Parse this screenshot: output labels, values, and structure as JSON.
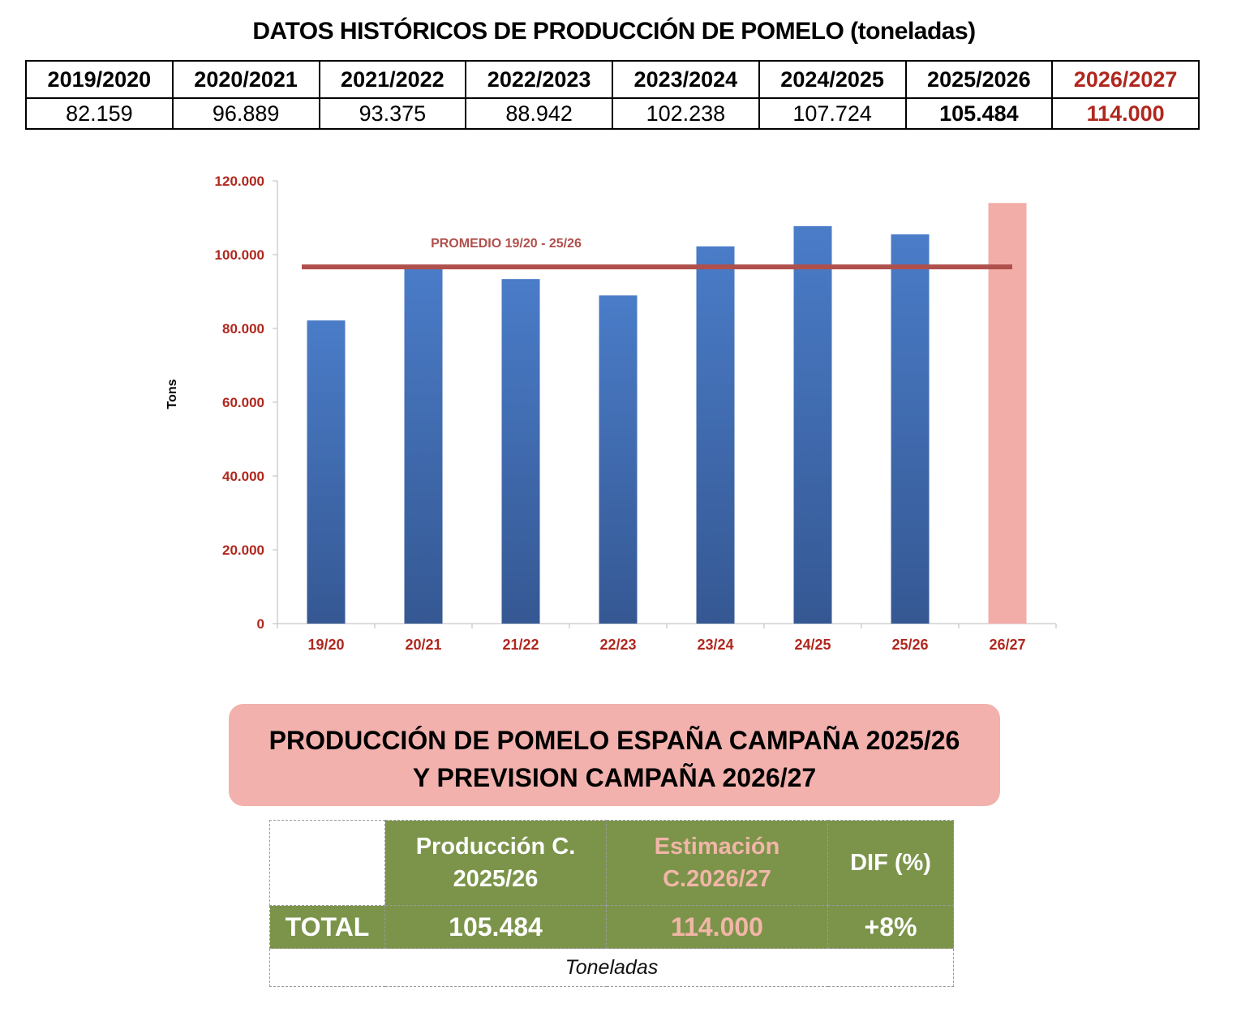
{
  "page": {
    "title": "DATOS HISTÓRICOS DE PRODUCCIÓN DE POMELO (toneladas)"
  },
  "historical_table": {
    "seasons": [
      "2019/2020",
      "2020/2021",
      "2021/2022",
      "2022/2023",
      "2023/2024",
      "2024/2025",
      "2025/2026",
      "2026/2027"
    ],
    "values": [
      "82.159",
      "96.889",
      "93.375",
      "88.942",
      "102.238",
      "107.724",
      "105.484",
      "114.000"
    ],
    "highlight_color": "#b0271e"
  },
  "chart_data": {
    "type": "bar",
    "categories": [
      "19/20",
      "20/21",
      "21/22",
      "22/23",
      "23/24",
      "24/25",
      "25/26",
      "26/27"
    ],
    "values": [
      82159,
      96889,
      93375,
      88942,
      102238,
      107724,
      105484,
      114000
    ],
    "ylabel": "Tons",
    "xlabel": "",
    "ylim": [
      0,
      120000
    ],
    "yticks": [
      0,
      20000,
      40000,
      60000,
      80000,
      100000,
      120000
    ],
    "ytick_labels": [
      "0",
      "20.000",
      "40.000",
      "60.000",
      "80.000",
      "100.000",
      "120.000"
    ],
    "grid": false,
    "bar_colors": {
      "historical": "#4a7cc8",
      "forecast": "#f2ada9"
    },
    "average_line": {
      "label": "PROMEDIO 19/20 - 25/26",
      "value": 96687,
      "color": "#b0504c"
    },
    "tick_label_color": "#b0271e"
  },
  "summary": {
    "banner_line1": "PRODUCCIÓN DE POMELO ESPAÑA CAMPAÑA 2025/26",
    "banner_line2": "Y PREVISION CAMPAÑA 2026/27",
    "col1_line1": "Producción C.",
    "col1_line2": "2025/26",
    "col2_line1": "Estimación",
    "col2_line2": "C.2026/27",
    "col3": "DIF (%)",
    "row_label": "TOTAL",
    "production": "105.484",
    "estimate": "114.000",
    "diff": "+8%",
    "unit": "Toneladas",
    "banner_color": "#f2b1ad",
    "header_color": "#7b944a"
  }
}
